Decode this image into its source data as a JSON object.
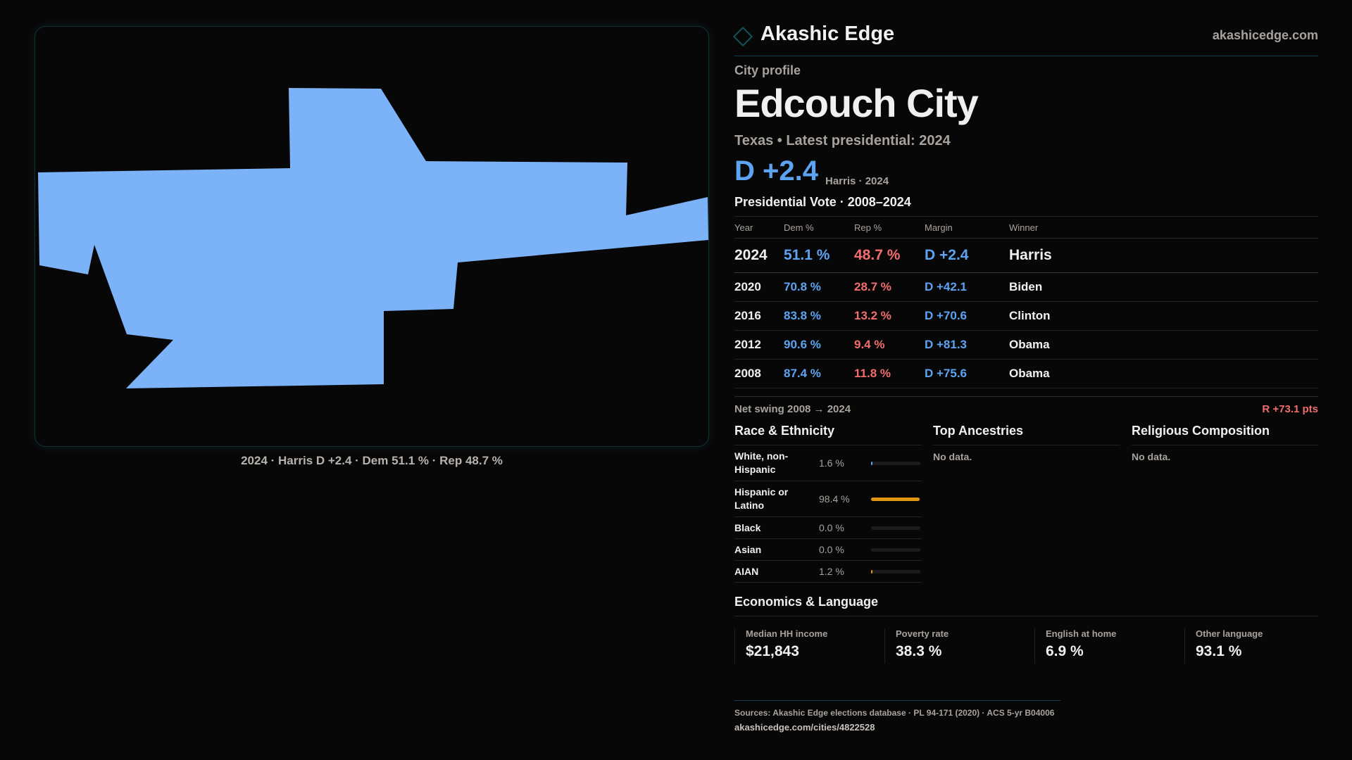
{
  "map": {
    "caption": "2024 · Harris D +2.4 · Dem 51.1 % · Rep 48.7 %",
    "fill_color": "#7cb2f7"
  },
  "header": {
    "brand": "Akashic Edge",
    "site": "akashicedge.com"
  },
  "profile": {
    "kicker": "City profile",
    "title": "Edcouch City",
    "subtitle": "Texas • Latest presidential: 2024",
    "margin": "D +2.4",
    "margin_note": "Harris · 2024"
  },
  "votes": {
    "title": "Presidential Vote · 2008–2024",
    "headers": [
      "Year",
      "Dem %",
      "Rep %",
      "Margin",
      "Winner"
    ],
    "rows": [
      [
        "2024",
        "51.1 %",
        "48.7 %",
        "D +2.4",
        "Harris"
      ],
      [
        "2020",
        "70.8 %",
        "28.7 %",
        "D +42.1",
        "Biden"
      ],
      [
        "2016",
        "83.8 %",
        "13.2 %",
        "D +70.6",
        "Clinton"
      ],
      [
        "2012",
        "90.6 %",
        "9.4 %",
        "D +81.3",
        "Obama"
      ],
      [
        "2008",
        "87.4 %",
        "11.8 %",
        "D +75.6",
        "Obama"
      ]
    ],
    "swing_label": "Net swing 2008 → 2024",
    "swing_value": "R +73.1 pts"
  },
  "race": {
    "title": "Race & Ethnicity",
    "rows": [
      {
        "label": "White, non-Hispanic",
        "pct": "1.6 %",
        "value": 1.6,
        "color": "#5ca3f2"
      },
      {
        "label": "Hispanic or Latino",
        "pct": "98.4 %",
        "value": 98.4,
        "color": "#e0960f"
      },
      {
        "label": "Black",
        "pct": "0.0 %",
        "value": 0,
        "color": "#e0960f"
      },
      {
        "label": "Asian",
        "pct": "0.0 %",
        "value": 0,
        "color": "#e0960f"
      },
      {
        "label": "AIAN",
        "pct": "1.2 %",
        "value": 1.2,
        "color": "#e0960f"
      }
    ]
  },
  "ancestries": {
    "title": "Top Ancestries",
    "empty": "No data."
  },
  "religion": {
    "title": "Religious Composition",
    "empty": "No data."
  },
  "economics": {
    "title": "Economics & Language",
    "stats": [
      {
        "label": "Median HH income",
        "value": "$21,843"
      },
      {
        "label": "Poverty rate",
        "value": "38.3 %"
      },
      {
        "label": "English at home",
        "value": "6.9 %"
      },
      {
        "label": "Other language",
        "value": "93.1 %"
      }
    ]
  },
  "footer": {
    "sources": "Sources: Akashic Edge elections database · PL 94-171 (2020) · ACS 5-yr B04006",
    "url": "akashicedge.com/cities/4822528"
  }
}
